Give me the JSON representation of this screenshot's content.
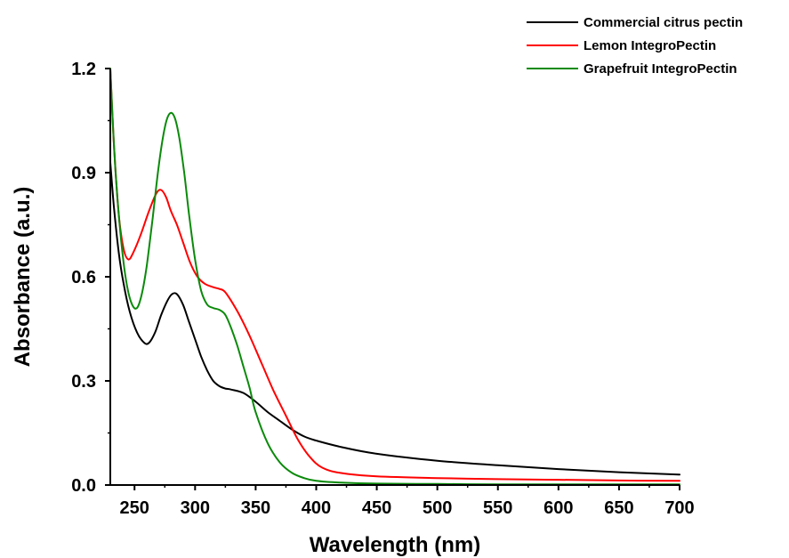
{
  "chart_data": {
    "type": "line",
    "title": "",
    "xlabel": "Wavelength (nm)",
    "ylabel": "Absorbance (a.u.)",
    "xlim": [
      230,
      700
    ],
    "ylim": [
      0,
      1.2
    ],
    "xticks": [
      250,
      300,
      350,
      400,
      450,
      500,
      550,
      600,
      650,
      700
    ],
    "xtick_labels": [
      "250",
      "300",
      "350",
      "400",
      "450",
      "500",
      "550",
      "600",
      "650",
      "700"
    ],
    "yticks": [
      0,
      0.3,
      0.6,
      0.9,
      1.2
    ],
    "ytick_labels": [
      "0.0",
      "0.3",
      "0.6",
      "0.9",
      "1.2"
    ],
    "grid": false,
    "legend_position": "top-right",
    "series": [
      {
        "name": "Commercial citrus pectin",
        "color": "#000000",
        "x": [
          230,
          233,
          237,
          241,
          246,
          252,
          258,
          262,
          267,
          272,
          277,
          281,
          285,
          290,
          295,
          300,
          305,
          310,
          315,
          320,
          325,
          330,
          340,
          350,
          360,
          370,
          380,
          390,
          400,
          420,
          450,
          500,
          550,
          600,
          650,
          700
        ],
        "y": [
          0.93,
          0.8,
          0.67,
          0.58,
          0.5,
          0.44,
          0.41,
          0.41,
          0.44,
          0.49,
          0.53,
          0.55,
          0.55,
          0.52,
          0.47,
          0.42,
          0.37,
          0.33,
          0.3,
          0.285,
          0.278,
          0.275,
          0.265,
          0.24,
          0.21,
          0.185,
          0.16,
          0.14,
          0.128,
          0.11,
          0.09,
          0.07,
          0.057,
          0.046,
          0.037,
          0.03
        ]
      },
      {
        "name": "Lemon IntegroPectin",
        "color": "#ff0000",
        "x": [
          230,
          233,
          237,
          241,
          245,
          249,
          255,
          262,
          268,
          272,
          276,
          280,
          285,
          290,
          296,
          302,
          308,
          315,
          320,
          325,
          335,
          345,
          355,
          365,
          375,
          385,
          395,
          405,
          420,
          450,
          500,
          550,
          600,
          650,
          700
        ],
        "y": [
          1.2,
          0.98,
          0.78,
          0.68,
          0.65,
          0.67,
          0.72,
          0.79,
          0.84,
          0.85,
          0.83,
          0.79,
          0.75,
          0.7,
          0.64,
          0.6,
          0.58,
          0.57,
          0.565,
          0.555,
          0.5,
          0.43,
          0.35,
          0.27,
          0.2,
          0.13,
          0.08,
          0.05,
          0.035,
          0.025,
          0.02,
          0.017,
          0.015,
          0.013,
          0.012
        ]
      },
      {
        "name": "Grapefruit IntegroPectin",
        "color": "#0b8a0b",
        "x": [
          230,
          233,
          236,
          240,
          244,
          248,
          252,
          256,
          260,
          265,
          270,
          275,
          279,
          283,
          287,
          291,
          295,
          300,
          305,
          310,
          315,
          320,
          325,
          330,
          335,
          340,
          345,
          350,
          360,
          370,
          380,
          390,
          400,
          420,
          450,
          500,
          550,
          600,
          650,
          700
        ],
        "y": [
          1.2,
          0.98,
          0.82,
          0.67,
          0.57,
          0.52,
          0.51,
          0.55,
          0.63,
          0.77,
          0.92,
          1.03,
          1.07,
          1.06,
          1.0,
          0.9,
          0.78,
          0.65,
          0.56,
          0.52,
          0.51,
          0.505,
          0.49,
          0.45,
          0.4,
          0.34,
          0.28,
          0.21,
          0.12,
          0.065,
          0.035,
          0.02,
          0.012,
          0.007,
          0.004,
          0.003,
          0.002,
          0.002,
          0.002,
          0.002
        ]
      }
    ]
  }
}
